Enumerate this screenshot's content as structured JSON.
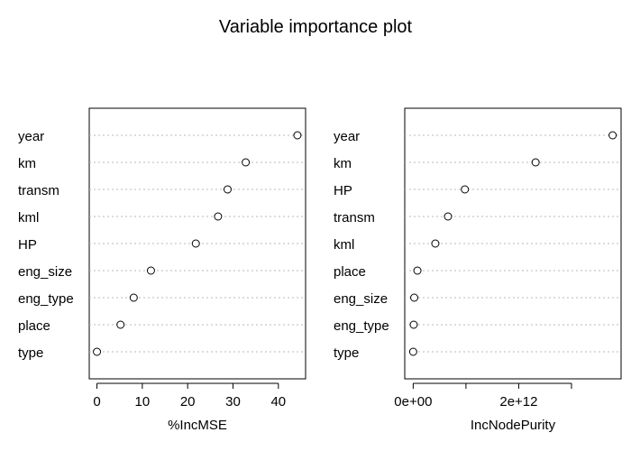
{
  "chart_data": [
    {
      "type": "scatter",
      "title": "Variable importance plot",
      "xlabel": "%IncMSE",
      "categories": [
        "year",
        "km",
        "transm",
        "kml",
        "HP",
        "eng_size",
        "eng_type",
        "place",
        "type"
      ],
      "values": [
        44.2,
        32.8,
        28.8,
        26.7,
        21.8,
        11.9,
        8.1,
        5.2,
        0.0
      ],
      "xlim": [
        -1.7,
        46.0
      ],
      "xticks": [
        0,
        10,
        20,
        30,
        40
      ],
      "xtick_labels": [
        "0",
        "10",
        "20",
        "30",
        "40"
      ],
      "marker": "open-circle",
      "grid": "dotted horizontal"
    },
    {
      "type": "scatter",
      "xlabel": "IncNodePurity",
      "categories": [
        "year",
        "km",
        "HP",
        "transm",
        "kml",
        "place",
        "eng_size",
        "eng_type",
        "type"
      ],
      "values": [
        3780000000000.0,
        2320000000000.0,
        980000000000.0,
        660000000000.0,
        420000000000.0,
        80000000000.0,
        20000000000.0,
        10000000000.0,
        0.0
      ],
      "xlim": [
        -160000000000.0,
        3940000000000.0
      ],
      "xticks": [
        0,
        1000000000000.0,
        2000000000000.0,
        3000000000000.0
      ],
      "xtick_labels": [
        "0e+00",
        "",
        "2e+12",
        ""
      ],
      "marker": "open-circle",
      "grid": "dotted horizontal"
    }
  ]
}
